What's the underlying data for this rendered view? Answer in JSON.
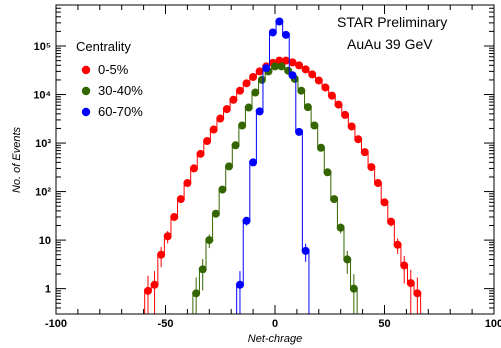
{
  "chart_data": {
    "type": "scatter",
    "xlabel": "Net-chrage",
    "ylabel": "No. of Events",
    "xlim": [
      -100,
      100
    ],
    "ylim_log": [
      0.3,
      700000
    ],
    "log_y": true,
    "x_ticks": [
      -100,
      -50,
      0,
      50,
      100
    ],
    "y_ticks": [
      {
        "value": 1,
        "label": "1"
      },
      {
        "value": 10,
        "label": "10"
      },
      {
        "value": 100,
        "label": "10²"
      },
      {
        "value": 1000,
        "label": "10³"
      },
      {
        "value": 10000,
        "label": "10⁴"
      },
      {
        "value": 100000,
        "label": "10⁵"
      }
    ],
    "annotation": [
      "STAR Preliminary",
      "AuAu 39 GeV"
    ],
    "legend_title": "Centrality",
    "legend_position": "top-left",
    "series": [
      {
        "name": "0-5%",
        "color": "#ff0000",
        "x": [
          -58,
          -55,
          -52,
          -49,
          -46,
          -43,
          -40,
          -37,
          -34,
          -31,
          -28,
          -25,
          -22,
          -19,
          -16,
          -13,
          -10,
          -7,
          -4,
          -1,
          2,
          5,
          8,
          11,
          14,
          17,
          20,
          23,
          26,
          29,
          32,
          35,
          38,
          41,
          44,
          47,
          50,
          53,
          56,
          59,
          62,
          65
        ],
        "y": [
          0.9,
          1.2,
          5,
          12,
          30,
          70,
          150,
          300,
          600,
          1100,
          1900,
          3200,
          5000,
          7800,
          12000,
          17000,
          23000,
          30000,
          38000,
          45000,
          50000,
          50000,
          46000,
          40000,
          33000,
          26000,
          19500,
          14000,
          9500,
          6200,
          3800,
          2200,
          1200,
          650,
          320,
          150,
          60,
          24,
          8,
          3,
          1.3,
          0.8
        ]
      },
      {
        "name": "30-40%",
        "color": "#336600",
        "x": [
          -36,
          -33,
          -30,
          -27,
          -24,
          -21,
          -18,
          -15,
          -12,
          -9,
          -6,
          -3,
          0,
          3,
          6,
          9,
          12,
          15,
          18,
          21,
          24,
          27,
          30,
          33,
          36
        ],
        "y": [
          0.8,
          2.5,
          10,
          35,
          110,
          330,
          900,
          2300,
          5400,
          11000,
          20000,
          30000,
          38000,
          38000,
          31000,
          21000,
          12000,
          5500,
          2300,
          800,
          250,
          70,
          18,
          4,
          1
        ]
      },
      {
        "name": "60-70%",
        "color": "#0000ff",
        "x": [
          -16,
          -13,
          -10,
          -7,
          -4,
          -1,
          2,
          5,
          8,
          11,
          14
        ],
        "y": [
          1.2,
          25,
          400,
          4500,
          35000,
          190000,
          320000,
          170000,
          25000,
          1700,
          6
        ]
      }
    ]
  }
}
